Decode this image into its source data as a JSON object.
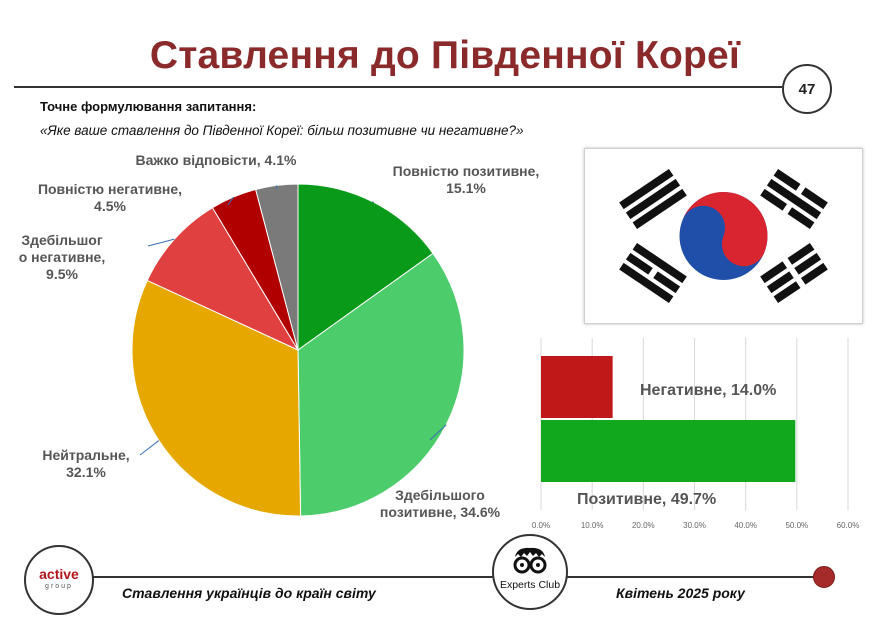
{
  "title": "Ставлення до Південної Кореї",
  "page_number": "47",
  "question_heading": "Точне формулювання запитання:",
  "question_text": "«Яке ваше ставлення до Південної Кореї: більш позитивне чи негативне?»",
  "footer": {
    "left_logo_text": "active",
    "left_logo_subtext": "group",
    "center_logo_text": "Experts Club",
    "left_caption": "Ставлення українців до країн світу",
    "right_caption": "Квітень 2025 року"
  },
  "flag_icon": "south-korea-flag-icon",
  "chart_data": [
    {
      "type": "pie",
      "slices": [
        {
          "label": "Повністю позитивне,",
          "value": 15.1,
          "value_label": "15.1%",
          "color": "#0a9a1a"
        },
        {
          "label": "Здебільшого позитивне,",
          "value": 34.6,
          "value_label": "34.6%",
          "color": "#4ccc6a"
        },
        {
          "label": "Нейтральне,",
          "value": 32.1,
          "value_label": "32.1%",
          "color": "#e6a800"
        },
        {
          "label": "Здебільшого негативне,",
          "value": 9.5,
          "value_label": "9.5%",
          "color": "#e04040"
        },
        {
          "label": "Повністю негативне,",
          "value": 4.5,
          "value_label": "4.5%",
          "color": "#b00000"
        },
        {
          "label": "Важко відповісти,",
          "value": 4.1,
          "value_label": "4.1%",
          "color": "#7a7a7a"
        }
      ]
    },
    {
      "type": "bar",
      "orientation": "horizontal",
      "categories": [
        "Негативне",
        "Позитивне"
      ],
      "values": [
        14.0,
        49.7
      ],
      "data_labels": [
        "Негативне, 14.0%",
        "Позитивне, 49.7%"
      ],
      "colors": [
        "#c01818",
        "#12a81e"
      ],
      "xlim": [
        0,
        60
      ],
      "xticks": [
        "0.0%",
        "10.0%",
        "20.0%",
        "30.0%",
        "40.0%",
        "50.0%",
        "60.0%"
      ],
      "grid": true
    }
  ]
}
